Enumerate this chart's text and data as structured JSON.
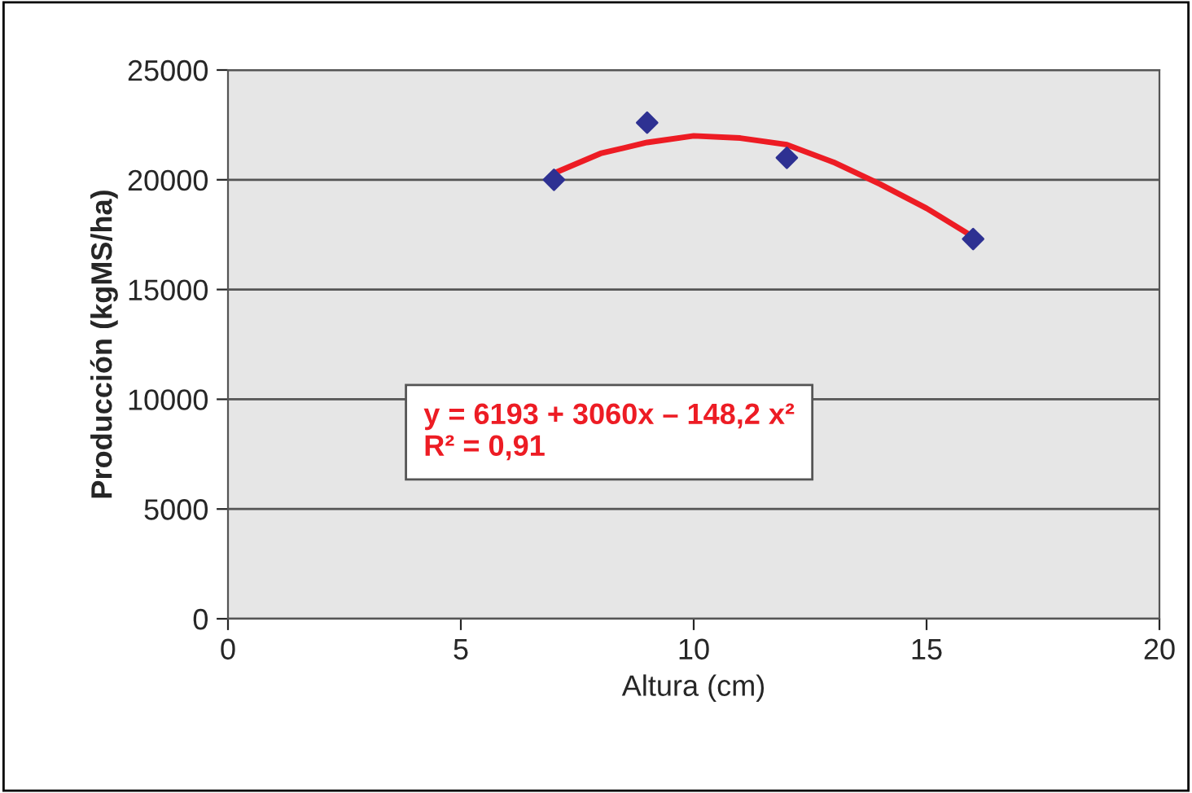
{
  "chart_data": {
    "type": "scatter",
    "xlabel": "Altura (cm)",
    "ylabel": "Producción (kgMS/ha)",
    "series": [
      {
        "color": "#2e3192",
        "marker": "diamond",
        "x": [
          7,
          9,
          12,
          16
        ],
        "values": [
          20000,
          22600,
          21000,
          17300
        ]
      },
      {
        "type": "line",
        "color": "#ed1c24",
        "marker": "none",
        "x": [
          7,
          8,
          9,
          10,
          11,
          12,
          13,
          14,
          15,
          16
        ],
        "values": [
          20300,
          21200,
          21700,
          22000,
          21900,
          21600,
          20800,
          19800,
          18700,
          17400
        ]
      }
    ],
    "annotations": [
      "y = 6193 + 3060x – 148,2 x²\nR² = 0,91"
    ],
    "xlim": [
      0,
      20
    ],
    "xticks": [
      0,
      5,
      10,
      15,
      20
    ],
    "ylim": [
      0,
      25000
    ],
    "yticks": [
      0,
      5000,
      10000,
      15000,
      20000,
      25000
    ],
    "grid": "y",
    "legend": false
  }
}
